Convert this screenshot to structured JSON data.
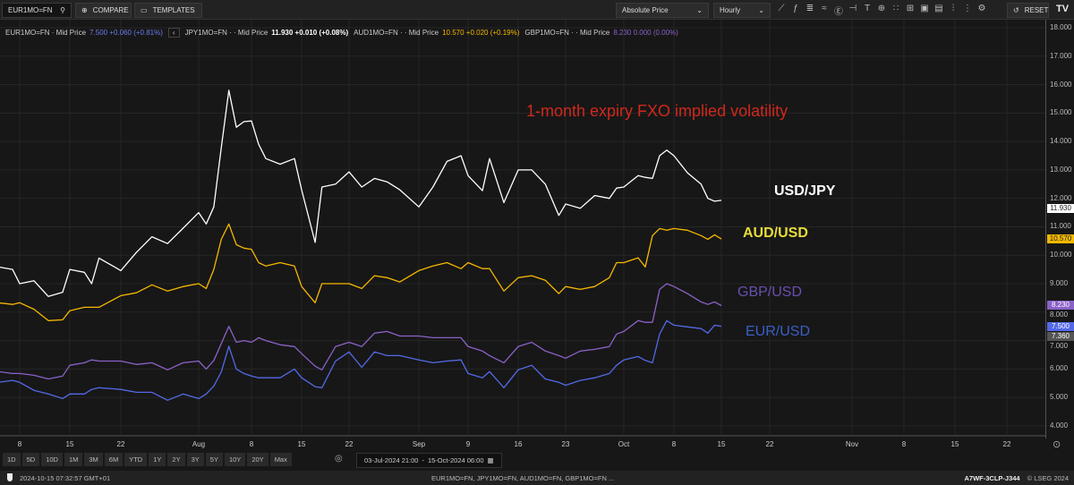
{
  "toolbar": {
    "symbol": "EUR1MO=FN",
    "compare": "COMPARE",
    "templates": "TEMPLATES",
    "price_type": "Absolute Price",
    "interval": "Hourly",
    "reset": "RESET",
    "logo": "TV",
    "icons": [
      "line-chart-icon",
      "indicators-icon",
      "bars-icon",
      "waves-icon",
      "currency-icon",
      "crosshair-icon",
      "text-icon",
      "zoom-icon",
      "magnet-icon",
      "table-icon",
      "layout-icon",
      "save-icon",
      "compare-chart-icon",
      "more-icon",
      "settings-icon"
    ]
  },
  "legend": [
    {
      "symbol": "EUR1MO=FN",
      "field": "· Mid Price",
      "value": "7.500",
      "change": "+0.060 (+0.81%)",
      "color": "#6a7cf0"
    },
    {
      "symbol": "JPY1MO=FN",
      "field": "· · Mid Price",
      "value": "11.930",
      "change": "+0.010 (+0.08%)",
      "color": "#ffffff"
    },
    {
      "symbol": "AUD1MO=FN",
      "field": "· · Mid Price",
      "value": "10.570",
      "change": "+0.020 (+0.19%)",
      "color": "#f5b800"
    },
    {
      "symbol": "GBP1MO=FN",
      "field": "· · Mid Price",
      "value": "8.230",
      "change": "0.000 (0.00%)",
      "color": "#8a62c8"
    }
  ],
  "chart_data": {
    "type": "line",
    "title": "1-month expiry FXO implied volatility",
    "ylim": [
      4,
      18
    ],
    "yticks": [
      "18.000",
      "17.000",
      "16.000",
      "15.000",
      "14.000",
      "13.000",
      "12.000",
      "11.000",
      "10.000",
      "9.000",
      "8.000",
      "7.000",
      "6.000",
      "5.000",
      "4.000"
    ],
    "xticks": [
      "8",
      "15",
      "22",
      "Aug",
      "8",
      "15",
      "22",
      "Sep",
      "9",
      "16",
      "23",
      "Oct",
      "8",
      "15",
      "22",
      "Nov",
      "8",
      "15",
      "22"
    ],
    "grid": true,
    "x": [
      "2024-07-05",
      "2024-07-07",
      "2024-07-08",
      "2024-07-10",
      "2024-07-12",
      "2024-07-14",
      "2024-07-15",
      "2024-07-17",
      "2024-07-18",
      "2024-07-19",
      "2024-07-22",
      "2024-07-24",
      "2024-07-26",
      "2024-07-28",
      "2024-07-30",
      "2024-08-01",
      "2024-08-02",
      "2024-08-03",
      "2024-08-04",
      "2024-08-05",
      "2024-08-06",
      "2024-08-07",
      "2024-08-08",
      "2024-08-09",
      "2024-08-10",
      "2024-08-12",
      "2024-08-14",
      "2024-08-15",
      "2024-08-17",
      "2024-08-18",
      "2024-08-20",
      "2024-08-22",
      "2024-08-24",
      "2024-08-26",
      "2024-08-28",
      "2024-08-30",
      "2024-09-02",
      "2024-09-04",
      "2024-09-06",
      "2024-09-08",
      "2024-09-09",
      "2024-09-11",
      "2024-09-12",
      "2024-09-14",
      "2024-09-16",
      "2024-09-18",
      "2024-09-20",
      "2024-09-22",
      "2024-09-23",
      "2024-09-25",
      "2024-09-27",
      "2024-09-29",
      "2024-09-30",
      "2024-10-01",
      "2024-10-03",
      "2024-10-04",
      "2024-10-05",
      "2024-10-06",
      "2024-10-07",
      "2024-10-08",
      "2024-10-10",
      "2024-10-12",
      "2024-10-13",
      "2024-10-14",
      "2024-10-15"
    ],
    "series": [
      {
        "name": "USD/JPY",
        "color": "#ffffff",
        "label_color": "#ffffff",
        "last": "11.930",
        "values": [
          9.59,
          9.5,
          9.0,
          9.1,
          8.55,
          8.7,
          9.5,
          9.4,
          9.0,
          9.9,
          9.46,
          10.1,
          10.65,
          10.41,
          10.95,
          11.5,
          11.1,
          11.7,
          13.8,
          15.8,
          14.5,
          14.7,
          14.72,
          13.9,
          13.4,
          13.2,
          13.4,
          12.3,
          10.45,
          12.4,
          12.5,
          12.93,
          12.4,
          12.7,
          12.58,
          12.3,
          11.7,
          12.4,
          13.3,
          13.5,
          12.8,
          12.27,
          13.4,
          11.85,
          13.0,
          13.0,
          12.5,
          11.4,
          11.8,
          11.65,
          12.1,
          12.0,
          12.36,
          12.4,
          12.8,
          12.74,
          12.7,
          13.5,
          13.7,
          13.5,
          12.9,
          12.5,
          12.0,
          11.9,
          11.93
        ]
      },
      {
        "name": "AUD/USD",
        "color": "#f5b800",
        "label_color": "#e8dc3a",
        "last": "10.570",
        "values": [
          8.33,
          8.27,
          8.33,
          8.1,
          7.7,
          7.73,
          8.05,
          8.17,
          8.17,
          8.17,
          8.58,
          8.68,
          8.96,
          8.74,
          8.9,
          9.0,
          8.83,
          9.5,
          10.56,
          11.1,
          10.37,
          10.25,
          10.21,
          9.74,
          9.62,
          9.74,
          9.62,
          8.9,
          8.33,
          9.0,
          9.0,
          9.0,
          8.83,
          9.28,
          9.21,
          9.06,
          9.46,
          9.62,
          9.74,
          9.53,
          9.74,
          9.53,
          9.53,
          8.74,
          9.21,
          9.28,
          9.12,
          8.65,
          8.9,
          8.8,
          8.9,
          9.21,
          9.74,
          9.74,
          9.91,
          9.59,
          10.69,
          10.94,
          10.88,
          10.94,
          10.88,
          10.69,
          10.56,
          10.72,
          10.57
        ]
      },
      {
        "name": "GBP/USD",
        "color": "#8a62c8",
        "label_color": "#6a4fb0",
        "last": "8.230",
        "values": [
          5.91,
          5.84,
          5.84,
          5.78,
          5.65,
          5.75,
          6.13,
          6.22,
          6.32,
          6.28,
          6.28,
          6.16,
          6.22,
          5.97,
          6.22,
          6.28,
          6.0,
          6.3,
          6.9,
          7.5,
          6.94,
          7.0,
          6.94,
          7.1,
          7.0,
          6.85,
          6.79,
          6.54,
          6.1,
          5.97,
          6.79,
          6.94,
          6.79,
          7.26,
          7.32,
          7.16,
          7.16,
          7.1,
          7.1,
          7.1,
          6.79,
          6.63,
          6.47,
          6.22,
          6.79,
          6.94,
          6.63,
          6.47,
          6.38,
          6.63,
          6.69,
          6.79,
          7.23,
          7.32,
          7.7,
          7.64,
          7.64,
          8.8,
          9.0,
          8.9,
          8.65,
          8.36,
          8.27,
          8.36,
          8.23
        ]
      },
      {
        "name": "EUR/USD",
        "color": "#5469e8",
        "label_color": "#3a5fc8",
        "last": "7.500",
        "values": [
          5.53,
          5.6,
          5.53,
          5.25,
          5.12,
          4.96,
          5.12,
          5.12,
          5.28,
          5.34,
          5.28,
          5.18,
          5.18,
          4.9,
          5.12,
          4.96,
          5.12,
          5.4,
          5.9,
          6.8,
          6.0,
          5.84,
          5.75,
          5.69,
          5.69,
          5.69,
          6.0,
          5.69,
          5.38,
          5.34,
          6.28,
          6.6,
          6.06,
          6.6,
          6.47,
          6.47,
          6.32,
          6.22,
          6.28,
          6.32,
          5.84,
          5.69,
          5.91,
          5.34,
          5.97,
          6.13,
          5.65,
          5.53,
          5.43,
          5.6,
          5.69,
          5.84,
          6.13,
          6.32,
          6.44,
          6.3,
          6.22,
          7.23,
          7.7,
          7.54,
          7.48,
          7.42,
          7.26,
          7.54,
          7.5
        ]
      }
    ],
    "extra_price_label": {
      "value": "7.360",
      "color": "#555555"
    }
  },
  "footer": {
    "periods": [
      "1D",
      "5D",
      "10D",
      "1M",
      "3M",
      "6M",
      "YTD",
      "1Y",
      "2Y",
      "3Y",
      "5Y",
      "10Y",
      "20Y",
      "Max"
    ],
    "range_from": "03-Jul-2024 21:00",
    "range_sep": "-",
    "range_to": "15-Oct-2024 06:00",
    "timestamp": "2024-10-15 07:32:57 GMT+01",
    "instruments": "EUR1MO=FN, JPY1MO=FN, AUD1MO=FN, GBP1MO=FN ...",
    "code": "A7WF-3CLP-J344",
    "copyright": "© LSEG 2024"
  }
}
